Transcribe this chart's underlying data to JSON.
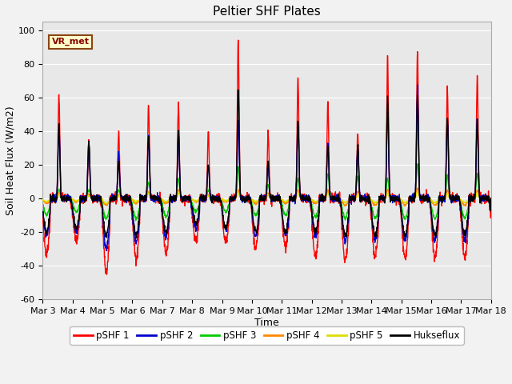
{
  "title": "Peltier SHF Plates",
  "xlabel": "Time",
  "ylabel": "Soil Heat Flux (W/m2)",
  "ylim": [
    -60,
    105
  ],
  "yticks": [
    -60,
    -40,
    -20,
    0,
    20,
    40,
    60,
    80,
    100
  ],
  "x_tick_labels": [
    "Mar 3",
    "Mar 4",
    "Mar 5",
    "Mar 6",
    "Mar 7",
    "Mar 8",
    "Mar 9",
    "Mar 10",
    "Mar 11",
    "Mar 12",
    "Mar 13",
    "Mar 14",
    "Mar 15",
    "Mar 16",
    "Mar 17",
    "Mar 18"
  ],
  "series_colors": {
    "pSHF1": "#ff0000",
    "pSHF2": "#0000cc",
    "pSHF3": "#00cc00",
    "pSHF4": "#ff8800",
    "pSHF5": "#dddd00",
    "Hukseflux": "#000000"
  },
  "legend_labels": [
    "pSHF 1",
    "pSHF 2",
    "pSHF 3",
    "pSHF 4",
    "pSHF 5",
    "Hukseflux"
  ],
  "annotation_text": "VR_met",
  "background_color": "#e8e8e8",
  "grid_color": "#ffffff",
  "title_fontsize": 11,
  "axis_fontsize": 9,
  "tick_fontsize": 8
}
